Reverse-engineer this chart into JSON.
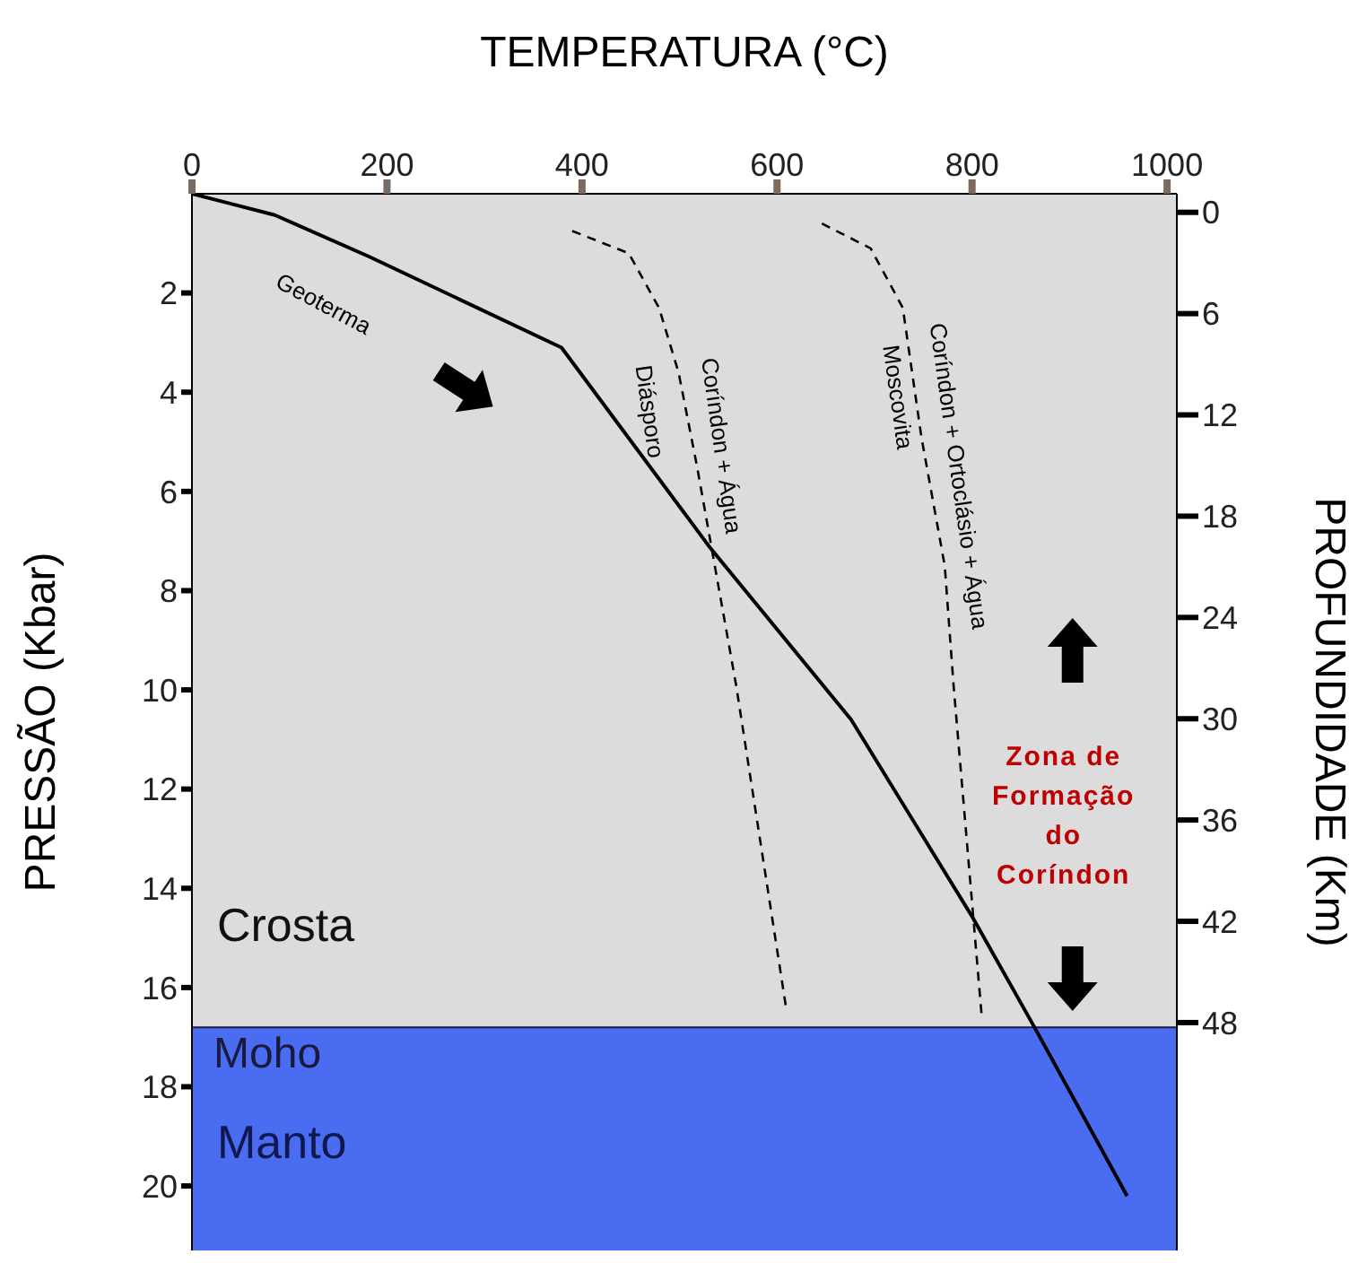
{
  "chart_data": {
    "type": "line",
    "xlabel": "TEMPERATURA (°C)",
    "ylabel": "PRESSÃO (Kbar)",
    "y2label": "PROFUNDIDADE (Km)",
    "xlim": [
      0,
      1010
    ],
    "xticks": [
      0,
      200,
      400,
      600,
      800,
      1000
    ],
    "ylim": [
      21.3,
      0
    ],
    "yticks": [
      2,
      4,
      6,
      8,
      10,
      12,
      14,
      16,
      18,
      20
    ],
    "y2lim": [
      61.5,
      -1.1
    ],
    "y2ticks": [
      0,
      6,
      12,
      18,
      24,
      30,
      36,
      42,
      48
    ],
    "series": [
      {
        "name": "Geoterma",
        "color": "#000000",
        "line_style": "solid",
        "x": [
          0,
          85,
          182,
          379,
          530,
          676,
          801,
          864,
          959
        ],
        "values": [
          0,
          0.43,
          1.27,
          3.1,
          7.1,
          10.6,
          14.6,
          16.8,
          20.2
        ]
      },
      {
        "color": "#000000",
        "line_style": "dashed",
        "x": [
          390,
          448,
          479,
          499,
          518,
          538,
          558,
          610
        ],
        "values": [
          0.75,
          1.2,
          2.3,
          3.6,
          5.5,
          7.7,
          9.9,
          16.5
        ]
      },
      {
        "color": "#000000",
        "line_style": "dashed",
        "x": [
          646,
          696,
          729,
          748,
          772,
          781,
          810
        ],
        "values": [
          0.6,
          1.1,
          2.3,
          4.9,
          7.5,
          9.9,
          16.6
        ]
      }
    ],
    "bands": [
      {
        "axis": "y",
        "from": 0,
        "to": 16.8,
        "label": "Crosta",
        "color": "#dcdcdc"
      },
      {
        "axis": "y",
        "from": 16.8,
        "to": 21.3,
        "label": "Manto",
        "color": "#4a6cf0"
      }
    ],
    "ref_lines": [
      {
        "axis": "y",
        "value": 16.8,
        "label": "Moho",
        "color": "#1a1a40"
      }
    ],
    "annotations": [
      "Diásporo",
      "Coríndon + Água",
      "Moscovita",
      "Coríndon + Ortoclásio + Água",
      "Zona de Formação do Coríndon"
    ],
    "marker": "none"
  }
}
